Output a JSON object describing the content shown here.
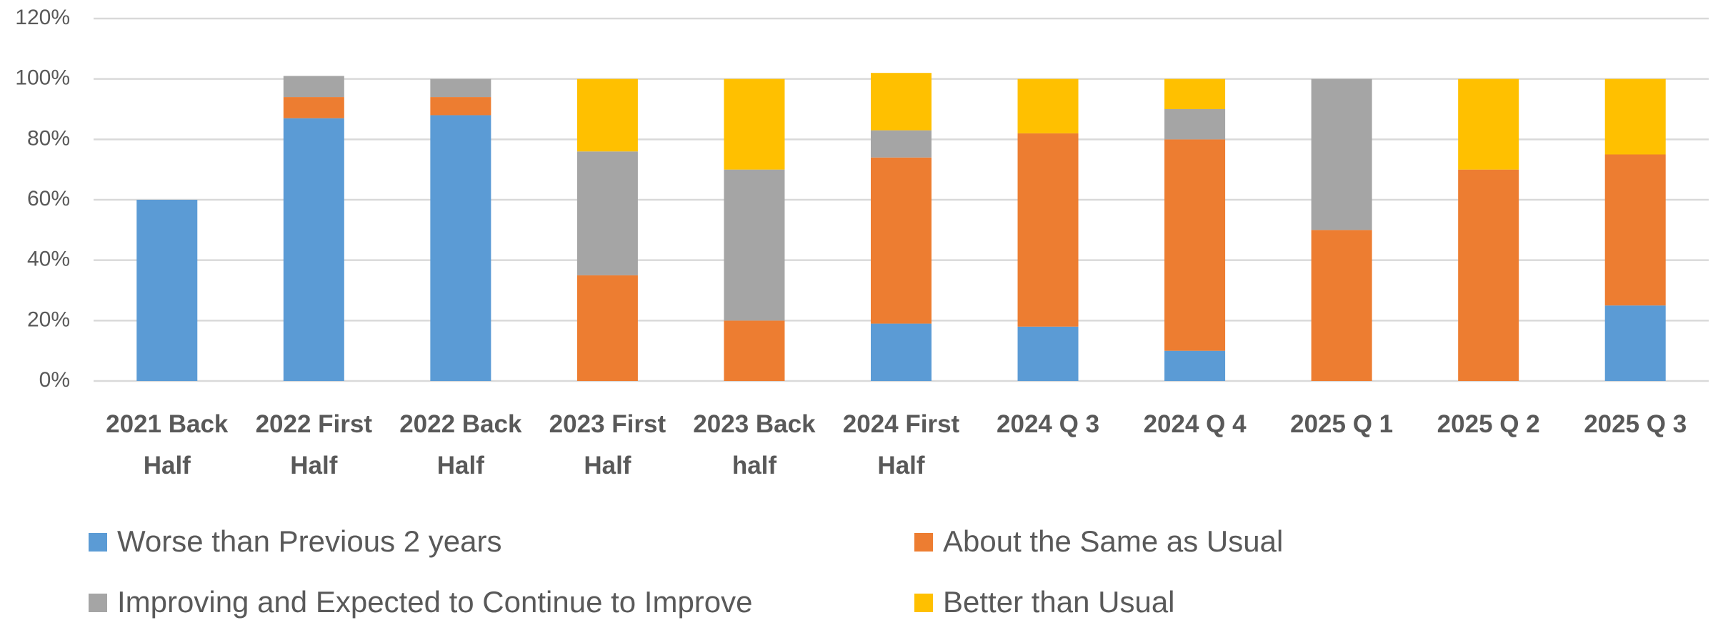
{
  "chart_data": {
    "type": "stacked_bar",
    "categories": [
      "2021 Back Half",
      "2022 First Half",
      "2022 Back Half",
      "2023 First Half",
      "2023 Back half",
      "2024 First Half",
      "2024 Q 3",
      "2024 Q 4",
      "2025 Q 1",
      "2025 Q 2",
      "2025 Q 3"
    ],
    "series": [
      {
        "name": "Worse than Previous 2 years",
        "color": "#5b9bd5",
        "values": [
          60,
          87,
          88,
          0,
          0,
          19,
          18,
          10,
          0,
          0,
          25
        ]
      },
      {
        "name": "About the Same as Usual",
        "color": "#ed7d31",
        "values": [
          0,
          7,
          6,
          35,
          20,
          55,
          64,
          70,
          50,
          70,
          50
        ]
      },
      {
        "name": "Improving and Expected to Continue to Improve",
        "color": "#a5a5a5",
        "values": [
          0,
          7,
          6,
          41,
          50,
          9,
          0,
          10,
          50,
          0,
          0
        ]
      },
      {
        "name": "Better than Usual",
        "color": "#ffc000",
        "values": [
          0,
          0,
          0,
          24,
          30,
          19,
          18,
          10,
          0,
          30,
          25
        ]
      }
    ],
    "ylim": [
      0,
      120
    ],
    "yticks": [
      {
        "value": 0,
        "label": "0%"
      },
      {
        "value": 20,
        "label": "20%"
      },
      {
        "value": 40,
        "label": "40%"
      },
      {
        "value": 60,
        "label": "60%"
      },
      {
        "value": 80,
        "label": "80%"
      },
      {
        "value": 100,
        "label": "100%"
      },
      {
        "value": 120,
        "label": "120%"
      }
    ],
    "grid": true,
    "legend": "bottom"
  }
}
